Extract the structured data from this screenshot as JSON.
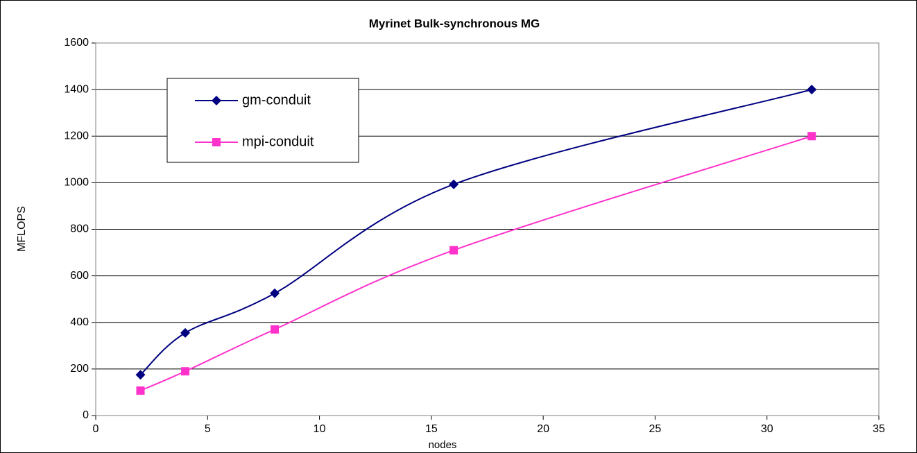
{
  "chart_data": {
    "type": "line",
    "title": "Myrinet Bulk-synchronous MG",
    "x_label": "nodes",
    "y_label": "MFLOPS",
    "x": [
      2,
      4,
      8,
      16,
      32
    ],
    "series": [
      {
        "name": "gm-conduit",
        "color": "#000080",
        "marker": "diamond",
        "values": [
          175,
          355,
          525,
          993,
          1400
        ]
      },
      {
        "name": "mpi-conduit",
        "color": "#ff33cc",
        "marker": "square",
        "values": [
          107,
          190,
          370,
          710,
          1200
        ]
      }
    ],
    "xlim": [
      0,
      35
    ],
    "xticks": [
      0,
      5,
      10,
      15,
      20,
      25,
      30,
      35
    ],
    "ylim": [
      0,
      1600
    ],
    "yticks": [
      0,
      200,
      400,
      600,
      800,
      1000,
      1200,
      1400,
      1600
    ],
    "grid": true,
    "smooth": true,
    "legend": "upper left"
  }
}
